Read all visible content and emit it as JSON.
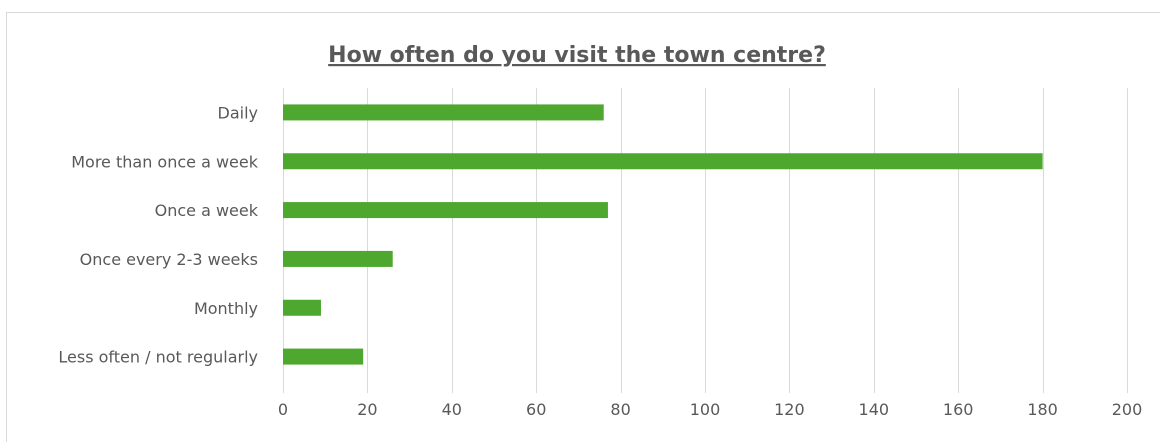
{
  "chart_data": {
    "type": "bar",
    "orientation": "horizontal",
    "title": "How often do you visit the town centre?",
    "categories": [
      "Daily",
      "More than once a week",
      "Once a week",
      "Once every 2-3 weeks",
      "Monthly",
      "Less often / not regularly"
    ],
    "values": [
      76,
      180,
      77,
      26,
      9,
      19
    ],
    "xlim": [
      0,
      200
    ],
    "xticks": [
      0,
      20,
      40,
      60,
      80,
      100,
      120,
      140,
      160,
      180,
      200
    ],
    "xlabel": "",
    "ylabel": "",
    "grid": "vertical",
    "legend": "none",
    "bar_color": "#4ea72e",
    "gridline_color": "#d9d9d9",
    "text_color": "#595959"
  }
}
